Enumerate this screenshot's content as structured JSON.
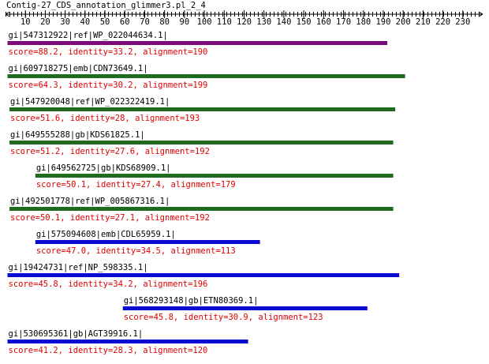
{
  "chart_data": {
    "type": "alignment",
    "title": "Contig-27_CDS_annotation_glimmer3.pl_2_4",
    "xlim": [
      0,
      240
    ],
    "xticks": [
      10,
      20,
      30,
      40,
      50,
      60,
      70,
      80,
      90,
      100,
      110,
      120,
      130,
      140,
      150,
      160,
      170,
      180,
      190,
      200,
      210,
      220,
      230
    ],
    "hits": [
      {
        "label": "gi|547312922|ref|WP_022044634.1|",
        "score_text": "score=88.2, identity=33.2, alignment=190",
        "start": 1,
        "end": 192,
        "color": "#7a0c7a"
      },
      {
        "label": "gi|609718275|emb|CDN73649.1|",
        "score_text": "score=64.3, identity=30.2, alignment=199",
        "start": 1,
        "end": 201,
        "color": "#1f6a1f"
      },
      {
        "label": "gi|547920048|ref|WP_022322419.1|",
        "score_text": "score=51.6, identity=28, alignment=193",
        "start": 2,
        "end": 196,
        "color": "#1f6a1f"
      },
      {
        "label": "gi|649555288|gb|KDS61825.1|",
        "score_text": "score=51.2, identity=27.6, alignment=192",
        "start": 2,
        "end": 195,
        "color": "#1f6a1f"
      },
      {
        "label": "gi|649562725|gb|KDS68909.1|",
        "score_text": "score=50.1, identity=27.4, alignment=179",
        "start": 15,
        "end": 195,
        "color": "#1f6a1f"
      },
      {
        "label": "gi|492501778|ref|WP_005867316.1|",
        "score_text": "score=50.1, identity=27.1, alignment=192",
        "start": 2,
        "end": 195,
        "color": "#1f6a1f"
      },
      {
        "label": "gi|575094608|emb|CDL65959.1|",
        "score_text": "score=47.0, identity=34.5, alignment=113",
        "start": 15,
        "end": 128,
        "color": "#0a0ad0"
      },
      {
        "label": "gi|19424731|ref|NP_598335.1|",
        "score_text": "score=45.8, identity=34.2, alignment=196",
        "start": 1,
        "end": 198,
        "color": "#0a0ad0"
      },
      {
        "label": "gi|568293148|gb|ETN80369.1|",
        "score_text": "score=45.8, identity=30.9, alignment=123",
        "start": 59,
        "end": 182,
        "color": "#0a0ad0"
      },
      {
        "label": "gi|530695361|gb|AGT39916.1|",
        "score_text": "score=41.2, identity=28.3, alignment=120",
        "start": 1,
        "end": 122,
        "color": "#0a0ad0"
      }
    ]
  }
}
